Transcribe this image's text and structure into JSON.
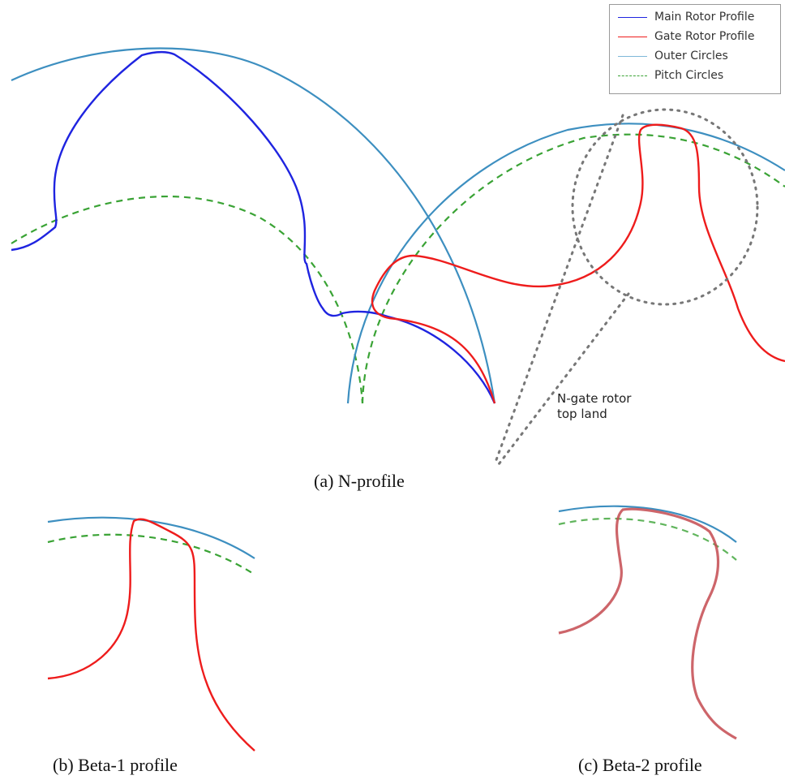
{
  "legend": {
    "items": [
      {
        "label": "Main Rotor Profile",
        "color": "#1f24e0",
        "style": "solid"
      },
      {
        "label": "Gate Rotor Profile",
        "color": "#ee1c1c",
        "style": "solid"
      },
      {
        "label": "Outer Circles",
        "color": "#7fb8d8",
        "style": "solid"
      },
      {
        "label": "Pitch Circles",
        "color": "#3aa335",
        "style": "dashed"
      }
    ]
  },
  "callout": {
    "line1": "N-gate rotor",
    "line2": "top land"
  },
  "captions": {
    "a": "(a)  N-profile",
    "b": "(b) Beta-1 profile",
    "c": "(c) Beta-2 profile"
  },
  "colors": {
    "main_rotor": "#1f24e0",
    "gate_rotor": "#ee1c1c",
    "outer_circle": "#3d8fc0",
    "pitch_circle": "#3aa335",
    "callout_dots": "#777777"
  }
}
